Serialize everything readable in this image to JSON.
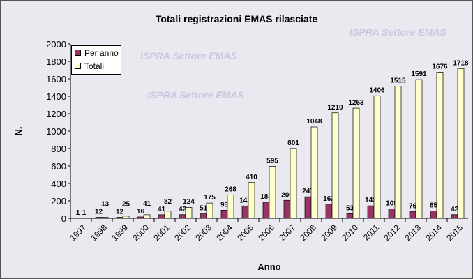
{
  "chart_data": {
    "type": "bar",
    "title": "Totali registrazioni EMAS rilasciate",
    "xlabel": "Anno",
    "ylabel": "N.",
    "ylim": [
      0,
      2000
    ],
    "ystep": 200,
    "watermark": "ISPRA Settore EMAS",
    "legend_position": "top-left",
    "categories": [
      "1997",
      "1998",
      "1999",
      "2000",
      "2001",
      "2002",
      "2003",
      "2004",
      "2005",
      "2006",
      "2007",
      "2008",
      "2009",
      "2010",
      "2011",
      "2012",
      "2013",
      "2014",
      "2015"
    ],
    "series": [
      {
        "name": "Per anno",
        "color": "#993366",
        "values": [
          1,
          12,
          12,
          16,
          41,
          42,
          51,
          93,
          142,
          185,
          206,
          247,
          162,
          53,
          143,
          109,
          76,
          85,
          42
        ]
      },
      {
        "name": "Totali",
        "color": "#ffffcc",
        "values": [
          1,
          13,
          25,
          41,
          82,
          124,
          175,
          268,
          410,
          595,
          801,
          1048,
          1210,
          1263,
          1406,
          1515,
          1591,
          1676,
          1718
        ]
      }
    ]
  }
}
